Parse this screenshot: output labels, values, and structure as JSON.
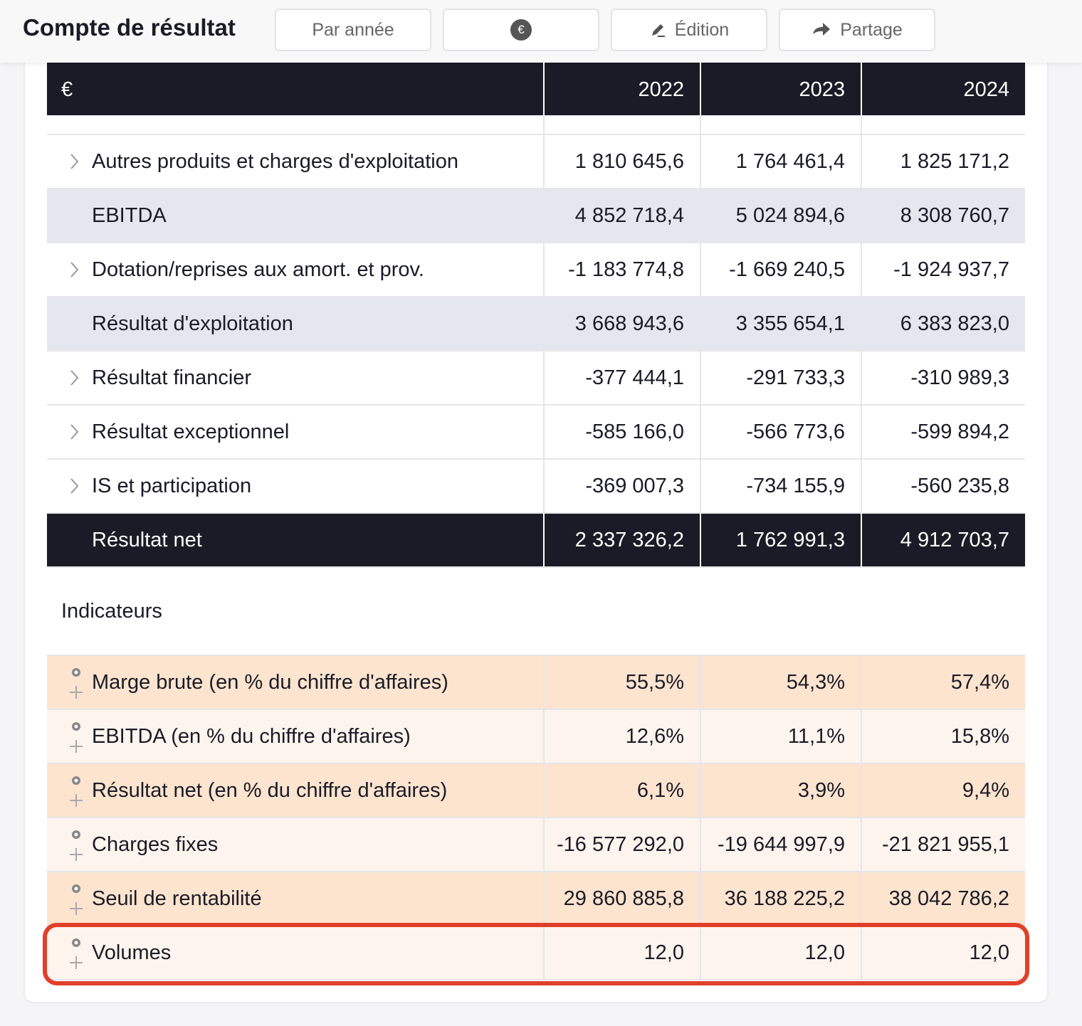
{
  "header": {
    "title": "Compte de résultat",
    "buttons": [
      "Par année",
      "€",
      "Édition",
      "Partage"
    ]
  },
  "table": {
    "columns": [
      "€",
      "2022",
      "2023",
      "2024"
    ],
    "rows": [
      {
        "label": "Autres produits et charges d'exploitation",
        "kind": "expand",
        "values": [
          "1 810 645,6",
          "1 764 461,4",
          "1 825 171,2"
        ]
      },
      {
        "label": "EBITDA",
        "kind": "subtotal",
        "values": [
          "4 852 718,4",
          "5 024 894,6",
          "8 308 760,7"
        ]
      },
      {
        "label": "Dotation/reprises aux amort. et prov.",
        "kind": "expand",
        "values": [
          "-1 183 774,8",
          "-1 669 240,5",
          "-1 924 937,7"
        ]
      },
      {
        "label": "Résultat d'exploitation",
        "kind": "subtotal",
        "values": [
          "3 668 943,6",
          "3 355 654,1",
          "6 383 823,0"
        ]
      },
      {
        "label": "Résultat financier",
        "kind": "expand",
        "values": [
          "-377 444,1",
          "-291 733,3",
          "-310 989,3"
        ]
      },
      {
        "label": "Résultat exceptionnel",
        "kind": "expand",
        "values": [
          "-585 166,0",
          "-566 773,6",
          "-599 894,2"
        ]
      },
      {
        "label": "IS et participation",
        "kind": "expand",
        "values": [
          "-369 007,3",
          "-734 155,9",
          "-560 235,8"
        ]
      },
      {
        "label": "Résultat net",
        "kind": "total",
        "values": [
          "2 337 326,2",
          "1 762 991,3",
          "4 912 703,7"
        ]
      }
    ]
  },
  "indicators": {
    "title": "Indicateurs",
    "rows": [
      {
        "label": "Marge brute (en % du chiffre d'affaires)",
        "values": [
          "55,5%",
          "54,3%",
          "57,4%"
        ]
      },
      {
        "label": "EBITDA (en % du chiffre d'affaires)",
        "values": [
          "12,6%",
          "11,1%",
          "15,8%"
        ]
      },
      {
        "label": "Résultat net (en % du chiffre d'affaires)",
        "values": [
          "6,1%",
          "3,9%",
          "9,4%"
        ]
      },
      {
        "label": "Charges fixes",
        "values": [
          "-16 577 292,0",
          "-19 644 997,9",
          "-21 821 955,1"
        ]
      },
      {
        "label": "Seuil de rentabilité",
        "values": [
          "29 860 885,8",
          "36 188 225,2",
          "38 042 786,2"
        ]
      },
      {
        "label": "Volumes",
        "values": [
          "12,0",
          "12,0",
          "12,0"
        ],
        "highlighted": true
      }
    ]
  }
}
